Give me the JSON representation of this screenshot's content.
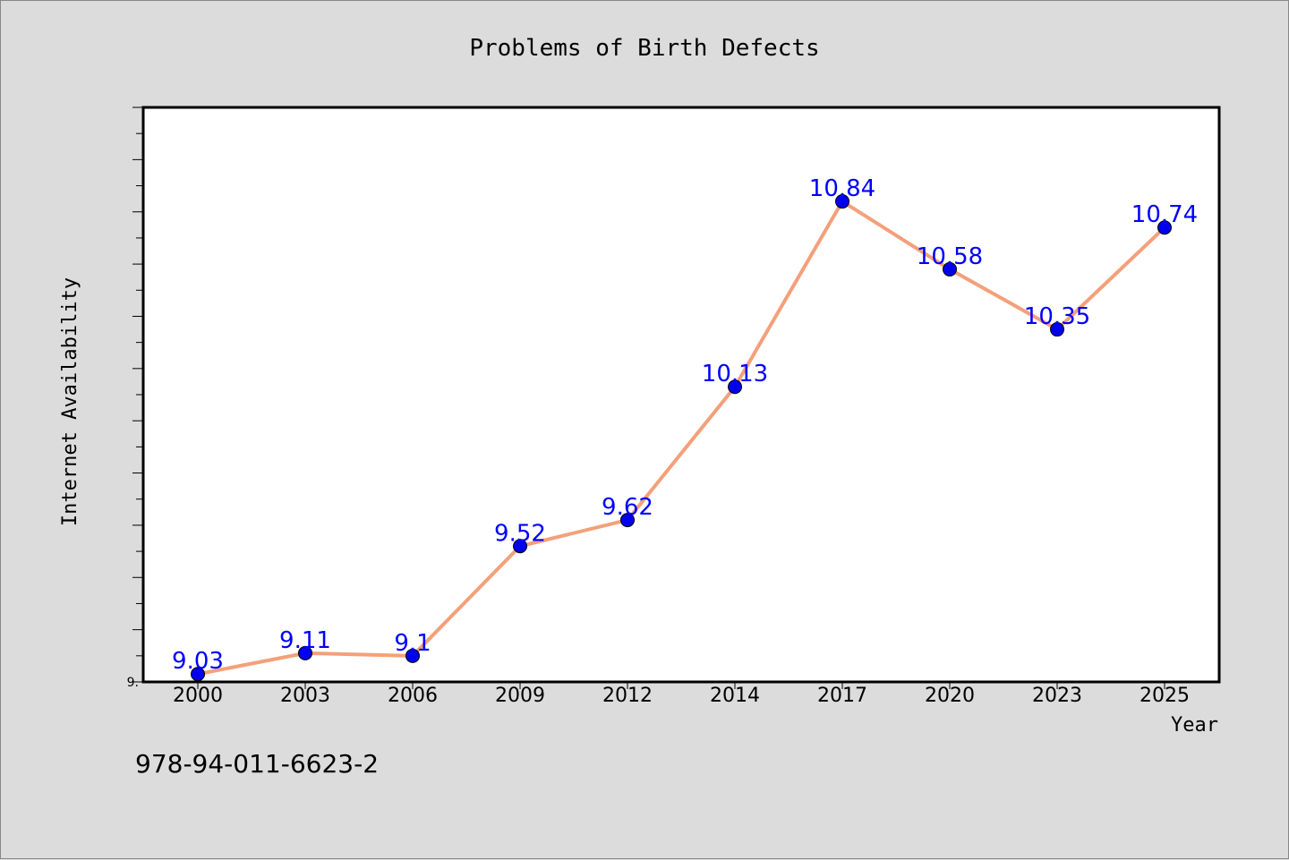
{
  "chart_data": {
    "type": "line",
    "title": "Problems of Birth Defects",
    "xlabel": "Year",
    "ylabel": "Internet Availability",
    "categories": [
      "2000",
      "2003",
      "2006",
      "2009",
      "2012",
      "2014",
      "2017",
      "2020",
      "2023",
      "2025"
    ],
    "series": [
      {
        "values": [
          9.03,
          9.11,
          9.1,
          9.52,
          9.62,
          10.13,
          10.84,
          10.58,
          10.35,
          10.74
        ],
        "labels": [
          "9.03",
          "9.11",
          "9.1",
          "9.52",
          "9.62",
          "10.13",
          "10.84",
          "10.58",
          "10.35",
          "10.74"
        ]
      }
    ],
    "ylim": [
      9.0,
      11.2
    ],
    "y_tick_label": "9.",
    "grid": false,
    "line_color": "#f4a07a",
    "marker_color": "#0000ee",
    "label_color": "#0000ff"
  },
  "footer": {
    "code": "978-94-011-6623-2"
  }
}
